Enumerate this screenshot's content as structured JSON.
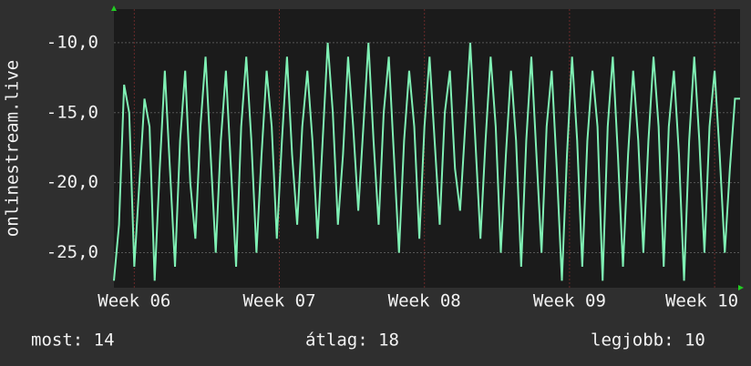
{
  "chart_data": {
    "type": "line",
    "y_label": "onlinestream.live",
    "ylim": [
      -27.5,
      -7.6
    ],
    "yticks": [
      {
        "value": -10,
        "label": "-10,0"
      },
      {
        "value": -15,
        "label": "-15,0"
      },
      {
        "value": -20,
        "label": "-20,0"
      },
      {
        "value": -25,
        "label": "-25,0"
      }
    ],
    "xlim": [
      0,
      123
    ],
    "xticks": [
      {
        "value": 4,
        "label": "Week 06"
      },
      {
        "value": 32.5,
        "label": "Week 07"
      },
      {
        "value": 61,
        "label": "Week 08"
      },
      {
        "value": 89.5,
        "label": "Week 09"
      },
      {
        "value": 118,
        "label": "Week 10"
      }
    ],
    "grid": true,
    "series": [
      {
        "color": "#7ff0b4",
        "values": [
          -27,
          -23,
          -13,
          -15,
          -26,
          -20,
          -14,
          -16,
          -27,
          -19,
          -12,
          -19,
          -26,
          -17,
          -12,
          -20,
          -24,
          -16,
          -11,
          -18,
          -25,
          -17,
          -12,
          -19,
          -26,
          -16,
          -11,
          -17,
          -25,
          -18,
          -12,
          -16,
          -24,
          -17,
          -11,
          -18,
          -23,
          -16,
          -12,
          -17,
          -24,
          -17,
          -10,
          -15,
          -23,
          -18,
          -11,
          -16,
          -22,
          -16,
          -10,
          -17,
          -23,
          -15,
          -11,
          -18,
          -25,
          -17,
          -12,
          -16,
          -24,
          -16,
          -11,
          -17,
          -23,
          -15,
          -12,
          -19,
          -22,
          -16,
          -10,
          -17,
          -24,
          -17,
          -11,
          -16,
          -25,
          -18,
          -12,
          -17,
          -26,
          -17,
          -11,
          -18,
          -25,
          -16,
          -12,
          -19,
          -27,
          -18,
          -11,
          -17,
          -26,
          -17,
          -12,
          -16,
          -27,
          -16,
          -11,
          -18,
          -26,
          -18,
          -12,
          -17,
          -25,
          -17,
          -11,
          -16,
          -26,
          -16,
          -12,
          -18,
          -27,
          -17,
          -11,
          -17,
          -25,
          -16,
          -12,
          -18,
          -25,
          -19,
          -14,
          -14
        ]
      }
    ],
    "footer": [
      "most: 14",
      "átlag: 18",
      "legjobb: 10"
    ]
  }
}
